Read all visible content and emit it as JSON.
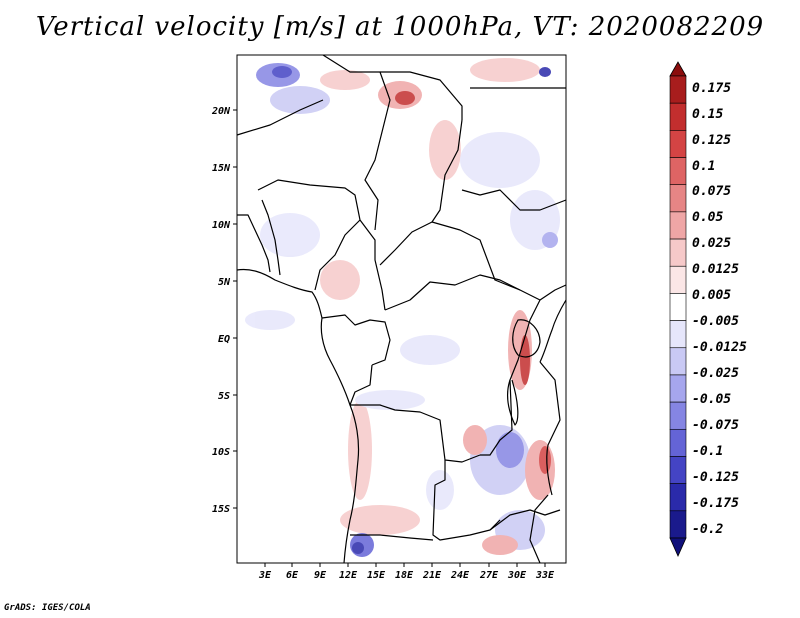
{
  "title": "Vertical velocity [m/s] at 1000hPa, VT: 2020082209",
  "credit": "GrADS: IGES/COLA",
  "lat_labels": [
    "20N",
    "15N",
    "10N",
    "5N",
    "EQ",
    "5S",
    "10S",
    "15S"
  ],
  "lon_labels": [
    "3E",
    "6E",
    "9E",
    "12E",
    "15E",
    "18E",
    "21E",
    "24E",
    "27E",
    "30E",
    "33E"
  ],
  "colorbar": {
    "labels": [
      "0.175",
      "0.15",
      "0.125",
      "0.1",
      "0.075",
      "0.05",
      "0.025",
      "0.0125",
      "0.005",
      "-0.005",
      "-0.0125",
      "-0.025",
      "-0.05",
      "-0.075",
      "-0.1",
      "-0.125",
      "-0.175",
      "-0.2"
    ],
    "colors": [
      "#8b0d0d",
      "#a81d1d",
      "#c22e2e",
      "#d44444",
      "#de6464",
      "#e68585",
      "#efa6a6",
      "#f6c9c9",
      "#fbe6e6",
      "#ffffff",
      "#e6e6fb",
      "#c9c9f4",
      "#a6a6ed",
      "#8585e3",
      "#6464d6",
      "#4444c4",
      "#2a2aaa",
      "#1a1a8c",
      "#10107a"
    ]
  }
}
